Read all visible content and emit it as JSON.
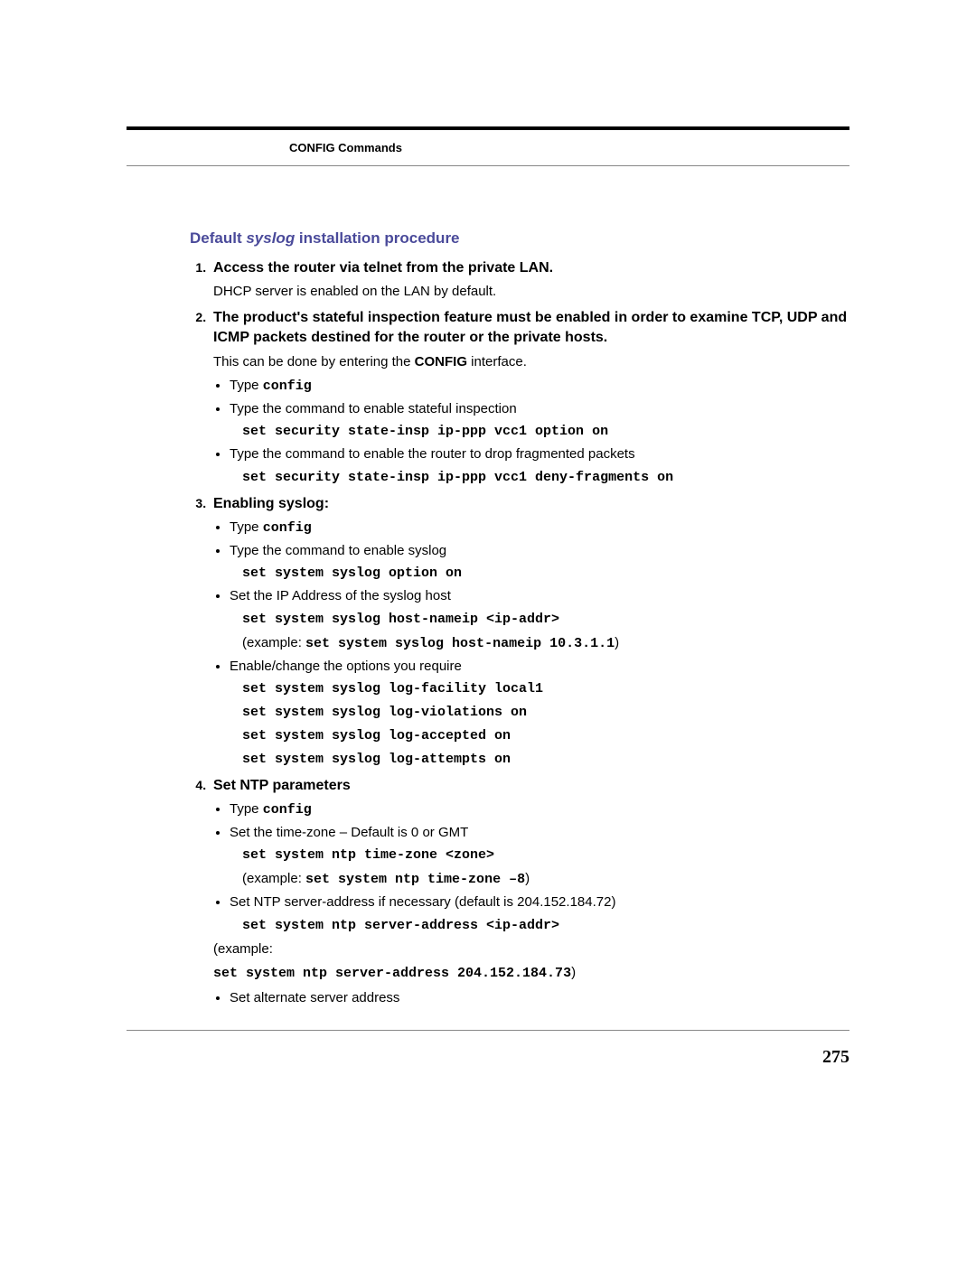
{
  "header": {
    "section": "CONFIG Commands"
  },
  "title": {
    "pre": "Default ",
    "ital": "syslog",
    "post": " installation procedure"
  },
  "steps": {
    "s1": {
      "head": "Access the router via telnet from the private LAN.",
      "body": "DHCP server is enabled on the LAN by default."
    },
    "s2": {
      "head": "The product's stateful inspection feature must be enabled in order to examine TCP, UDP and ICMP packets destined for the router or the private hosts.",
      "body_pre": "This can be done by entering the ",
      "body_bold": "CONFIG",
      "body_post": " interface.",
      "b_type": "Type ",
      "b_type_cmd": "config",
      "b_enable": "Type the command to enable stateful inspection",
      "cmd_enable": "set security state-insp ip-ppp vcc1 option on",
      "b_deny": "Type the command to enable the router to drop fragmented packets",
      "cmd_deny": "set security state-insp ip-ppp vcc1 deny-fragments on"
    },
    "s3": {
      "head": "Enabling syslog:",
      "b_type": "Type ",
      "b_type_cmd": "config",
      "b_enable": "Type the command to enable syslog",
      "cmd_enable": "set system syslog option on",
      "b_host": "Set the IP Address of the syslog host",
      "cmd_host": "set system syslog host-nameip <ip-addr>",
      "ex_pre": "(example: ",
      "ex_cmd": "set system syslog host-nameip 10.3.1.1",
      "ex_post": ")",
      "b_opts": "Enable/change the options you require",
      "cmd_o1": "set system syslog log-facility local1",
      "cmd_o2": "set system syslog log-violations on",
      "cmd_o3": "set system syslog log-accepted on",
      "cmd_o4": "set system syslog log-attempts on"
    },
    "s4": {
      "head": "Set NTP parameters",
      "b_type": "Type ",
      "b_type_cmd": "config",
      "b_tz": "Set the time-zone – Default is 0 or GMT",
      "cmd_tz": "set system ntp time-zone <zone>",
      "ex_tz_pre": "(example: ",
      "ex_tz_cmd": "set system ntp time-zone –8",
      "ex_tz_post": ")",
      "b_srv": "Set NTP server-address if necessary (default is 204.152.184.72)",
      "cmd_srv": "set system ntp server-address <ip-addr>",
      "ex_srv_pre": "(example:",
      "ex_srv_cmd": "set system ntp server-address 204.152.184.73",
      "ex_srv_post": ")",
      "b_alt": "Set alternate server address"
    }
  },
  "page_number": "275"
}
